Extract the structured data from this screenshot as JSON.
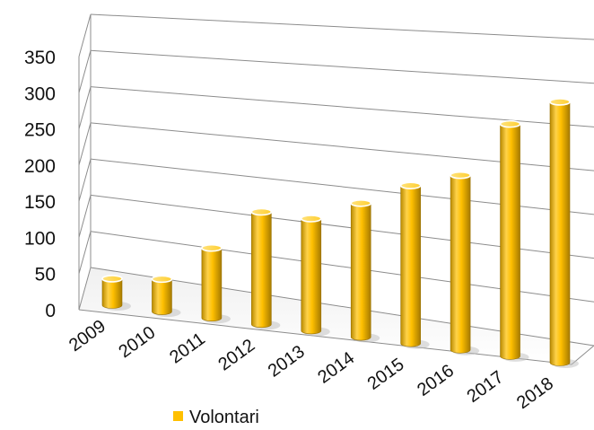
{
  "chart_data": {
    "type": "bar",
    "style": "3d-cylinder",
    "categories": [
      "2009",
      "2010",
      "2011",
      "2012",
      "2013",
      "2014",
      "2015",
      "2016",
      "2017",
      "2018"
    ],
    "series": [
      {
        "name": "Volontari",
        "values": [
          33,
          40,
          85,
          135,
          133,
          157,
          183,
          200,
          263,
          292
        ],
        "color": "#FFC000"
      }
    ],
    "y_ticks": [
      "0",
      "50",
      "100",
      "150",
      "200",
      "250",
      "300",
      "350"
    ],
    "ylim": [
      0,
      350
    ],
    "grid": true,
    "legend_position": "bottom-center",
    "title": "",
    "xlabel": "",
    "ylabel": ""
  }
}
